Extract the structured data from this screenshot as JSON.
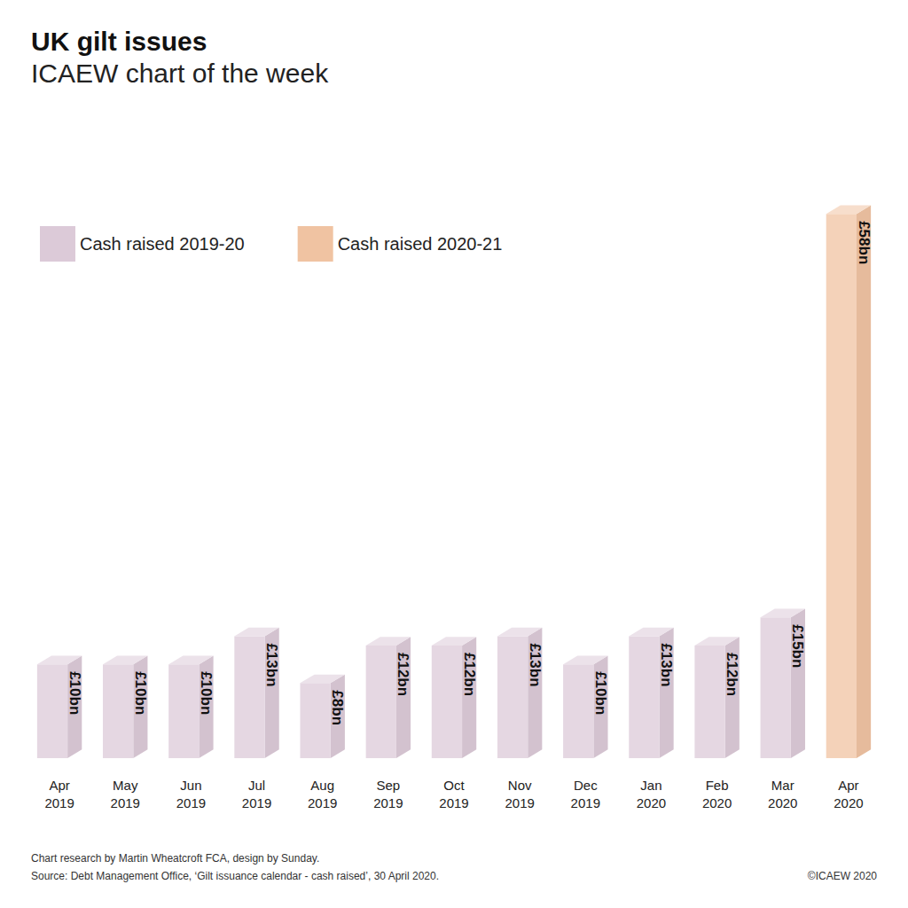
{
  "chart_data": {
    "type": "bar",
    "title": "UK gilt issues",
    "subtitle": "ICAEW chart of the week",
    "categories": [
      "Apr 2019",
      "May 2019",
      "Jun 2019",
      "Jul 2019",
      "Aug 2019",
      "Sep 2019",
      "Oct 2019",
      "Nov 2019",
      "Dec 2019",
      "Jan 2020",
      "Feb 2020",
      "Mar 2020",
      "Apr 2020"
    ],
    "series": [
      {
        "name": "Cash raised 2019-20",
        "color": "#dccad8",
        "values": [
          10,
          10,
          10,
          13,
          8,
          12,
          12,
          13,
          10,
          13,
          12,
          15,
          null
        ],
        "value_labels": [
          "£10bn",
          "£10bn",
          "£10bn",
          "£13bn",
          "£8bn",
          "£12bn",
          "£12bn",
          "£13bn",
          "£10bn",
          "£13bn",
          "£12bn",
          "£15bn",
          null
        ]
      },
      {
        "name": "Cash raised 2020-21",
        "color": "#f0c3a2",
        "values": [
          null,
          null,
          null,
          null,
          null,
          null,
          null,
          null,
          null,
          null,
          null,
          null,
          58
        ],
        "value_labels": [
          null,
          null,
          null,
          null,
          null,
          null,
          null,
          null,
          null,
          null,
          null,
          null,
          "£58bn"
        ]
      }
    ],
    "ylim": [
      0,
      60
    ],
    "grid": false,
    "legend": "top-left",
    "data_labels": true,
    "tick_labels": "x",
    "footnotes": [
      "Chart research by Martin Wheatcroft FCA, design by Sunday.",
      "Source: Debt Management Office, ‘Gilt issuance calendar - cash raised’, 30 April 2020."
    ],
    "copyright": "©ICAEW 2020"
  }
}
